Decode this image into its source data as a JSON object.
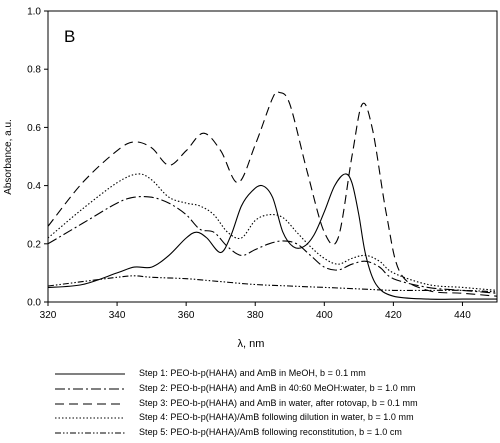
{
  "chart_data": {
    "type": "line",
    "panel_label": "B",
    "xlabel": "λ, nm",
    "ylabel": "Absorbance, a.u.",
    "xlim": [
      320,
      450
    ],
    "ylim": [
      0.0,
      1.0
    ],
    "x_ticks": [
      320,
      340,
      360,
      380,
      400,
      420,
      440
    ],
    "y_ticks": [
      0.0,
      0.2,
      0.4,
      0.6,
      0.8,
      1.0
    ],
    "x_tick_labels": [
      "320",
      "340",
      "360",
      "380",
      "400",
      "420",
      "440"
    ],
    "y_tick_labels": [
      "0.0",
      "0.2",
      "0.4",
      "0.6",
      "0.8",
      "1.0"
    ],
    "grid": false,
    "legend_position": "below plot",
    "series": [
      {
        "name": "Step 1: PEO-b-p(HAHA) and AmB in MeOH, b = 0.1 mm",
        "style": "solid",
        "x": [
          320,
          330,
          340,
          345,
          350,
          355,
          360,
          363,
          366,
          370,
          373,
          376,
          379,
          382,
          385,
          388,
          391,
          394,
          397,
          400,
          403,
          406,
          408,
          410,
          412,
          415,
          420,
          430,
          440,
          450
        ],
        "y": [
          0.05,
          0.06,
          0.1,
          0.12,
          0.12,
          0.16,
          0.22,
          0.24,
          0.22,
          0.17,
          0.23,
          0.33,
          0.38,
          0.4,
          0.36,
          0.24,
          0.19,
          0.19,
          0.23,
          0.31,
          0.4,
          0.44,
          0.41,
          0.3,
          0.16,
          0.06,
          0.02,
          0.01,
          0.01,
          0.01
        ]
      },
      {
        "name": "Step 2: PEO-b-p(HAHA) and AmB in 40:60 MeOH:water, b = 1.0 mm",
        "style": "long-dash-dot",
        "x": [
          320,
          330,
          340,
          345,
          350,
          355,
          360,
          364,
          368,
          372,
          376,
          380,
          384,
          388,
          392,
          396,
          400,
          404,
          408,
          412,
          416,
          420,
          430,
          440,
          450
        ],
        "y": [
          0.2,
          0.27,
          0.34,
          0.36,
          0.36,
          0.34,
          0.3,
          0.25,
          0.24,
          0.19,
          0.16,
          0.18,
          0.2,
          0.21,
          0.2,
          0.16,
          0.12,
          0.11,
          0.13,
          0.14,
          0.12,
          0.08,
          0.05,
          0.04,
          0.03
        ]
      },
      {
        "name": "Step 3: PEO-b-p(HAHA) and AmB in water, after rotovap, b = 0.1 mm",
        "style": "long-dash",
        "x": [
          320,
          330,
          340,
          345,
          350,
          355,
          360,
          365,
          370,
          375,
          380,
          385,
          387,
          390,
          395,
          400,
          404,
          408,
          411,
          414,
          418,
          422,
          430,
          440,
          450
        ],
        "y": [
          0.26,
          0.41,
          0.52,
          0.55,
          0.53,
          0.47,
          0.52,
          0.58,
          0.52,
          0.41,
          0.54,
          0.7,
          0.72,
          0.68,
          0.45,
          0.24,
          0.22,
          0.5,
          0.68,
          0.59,
          0.3,
          0.1,
          0.04,
          0.03,
          0.02
        ]
      },
      {
        "name": "Step 4: PEO-b-p(HAHA)/AmB following dilution in water, b = 1.0 mm",
        "style": "dotted",
        "x": [
          320,
          330,
          340,
          346,
          350,
          355,
          360,
          364,
          368,
          372,
          376,
          380,
          384,
          388,
          392,
          396,
          400,
          404,
          408,
          412,
          416,
          420,
          430,
          440,
          450
        ],
        "y": [
          0.22,
          0.32,
          0.41,
          0.44,
          0.42,
          0.36,
          0.34,
          0.33,
          0.3,
          0.24,
          0.22,
          0.28,
          0.3,
          0.29,
          0.24,
          0.19,
          0.15,
          0.13,
          0.15,
          0.16,
          0.14,
          0.1,
          0.06,
          0.05,
          0.04
        ]
      },
      {
        "name": "Step 5: PEO-b-p(HAHA)/AmB following reconstitution, b = 1.0 cm",
        "style": "dash-dot-dot",
        "x": [
          320,
          330,
          340,
          345,
          350,
          360,
          370,
          380,
          390,
          400,
          410,
          420,
          430,
          440,
          450
        ],
        "y": [
          0.055,
          0.07,
          0.085,
          0.09,
          0.085,
          0.08,
          0.07,
          0.06,
          0.055,
          0.05,
          0.045,
          0.04,
          0.04,
          0.04,
          0.035
        ]
      }
    ]
  }
}
